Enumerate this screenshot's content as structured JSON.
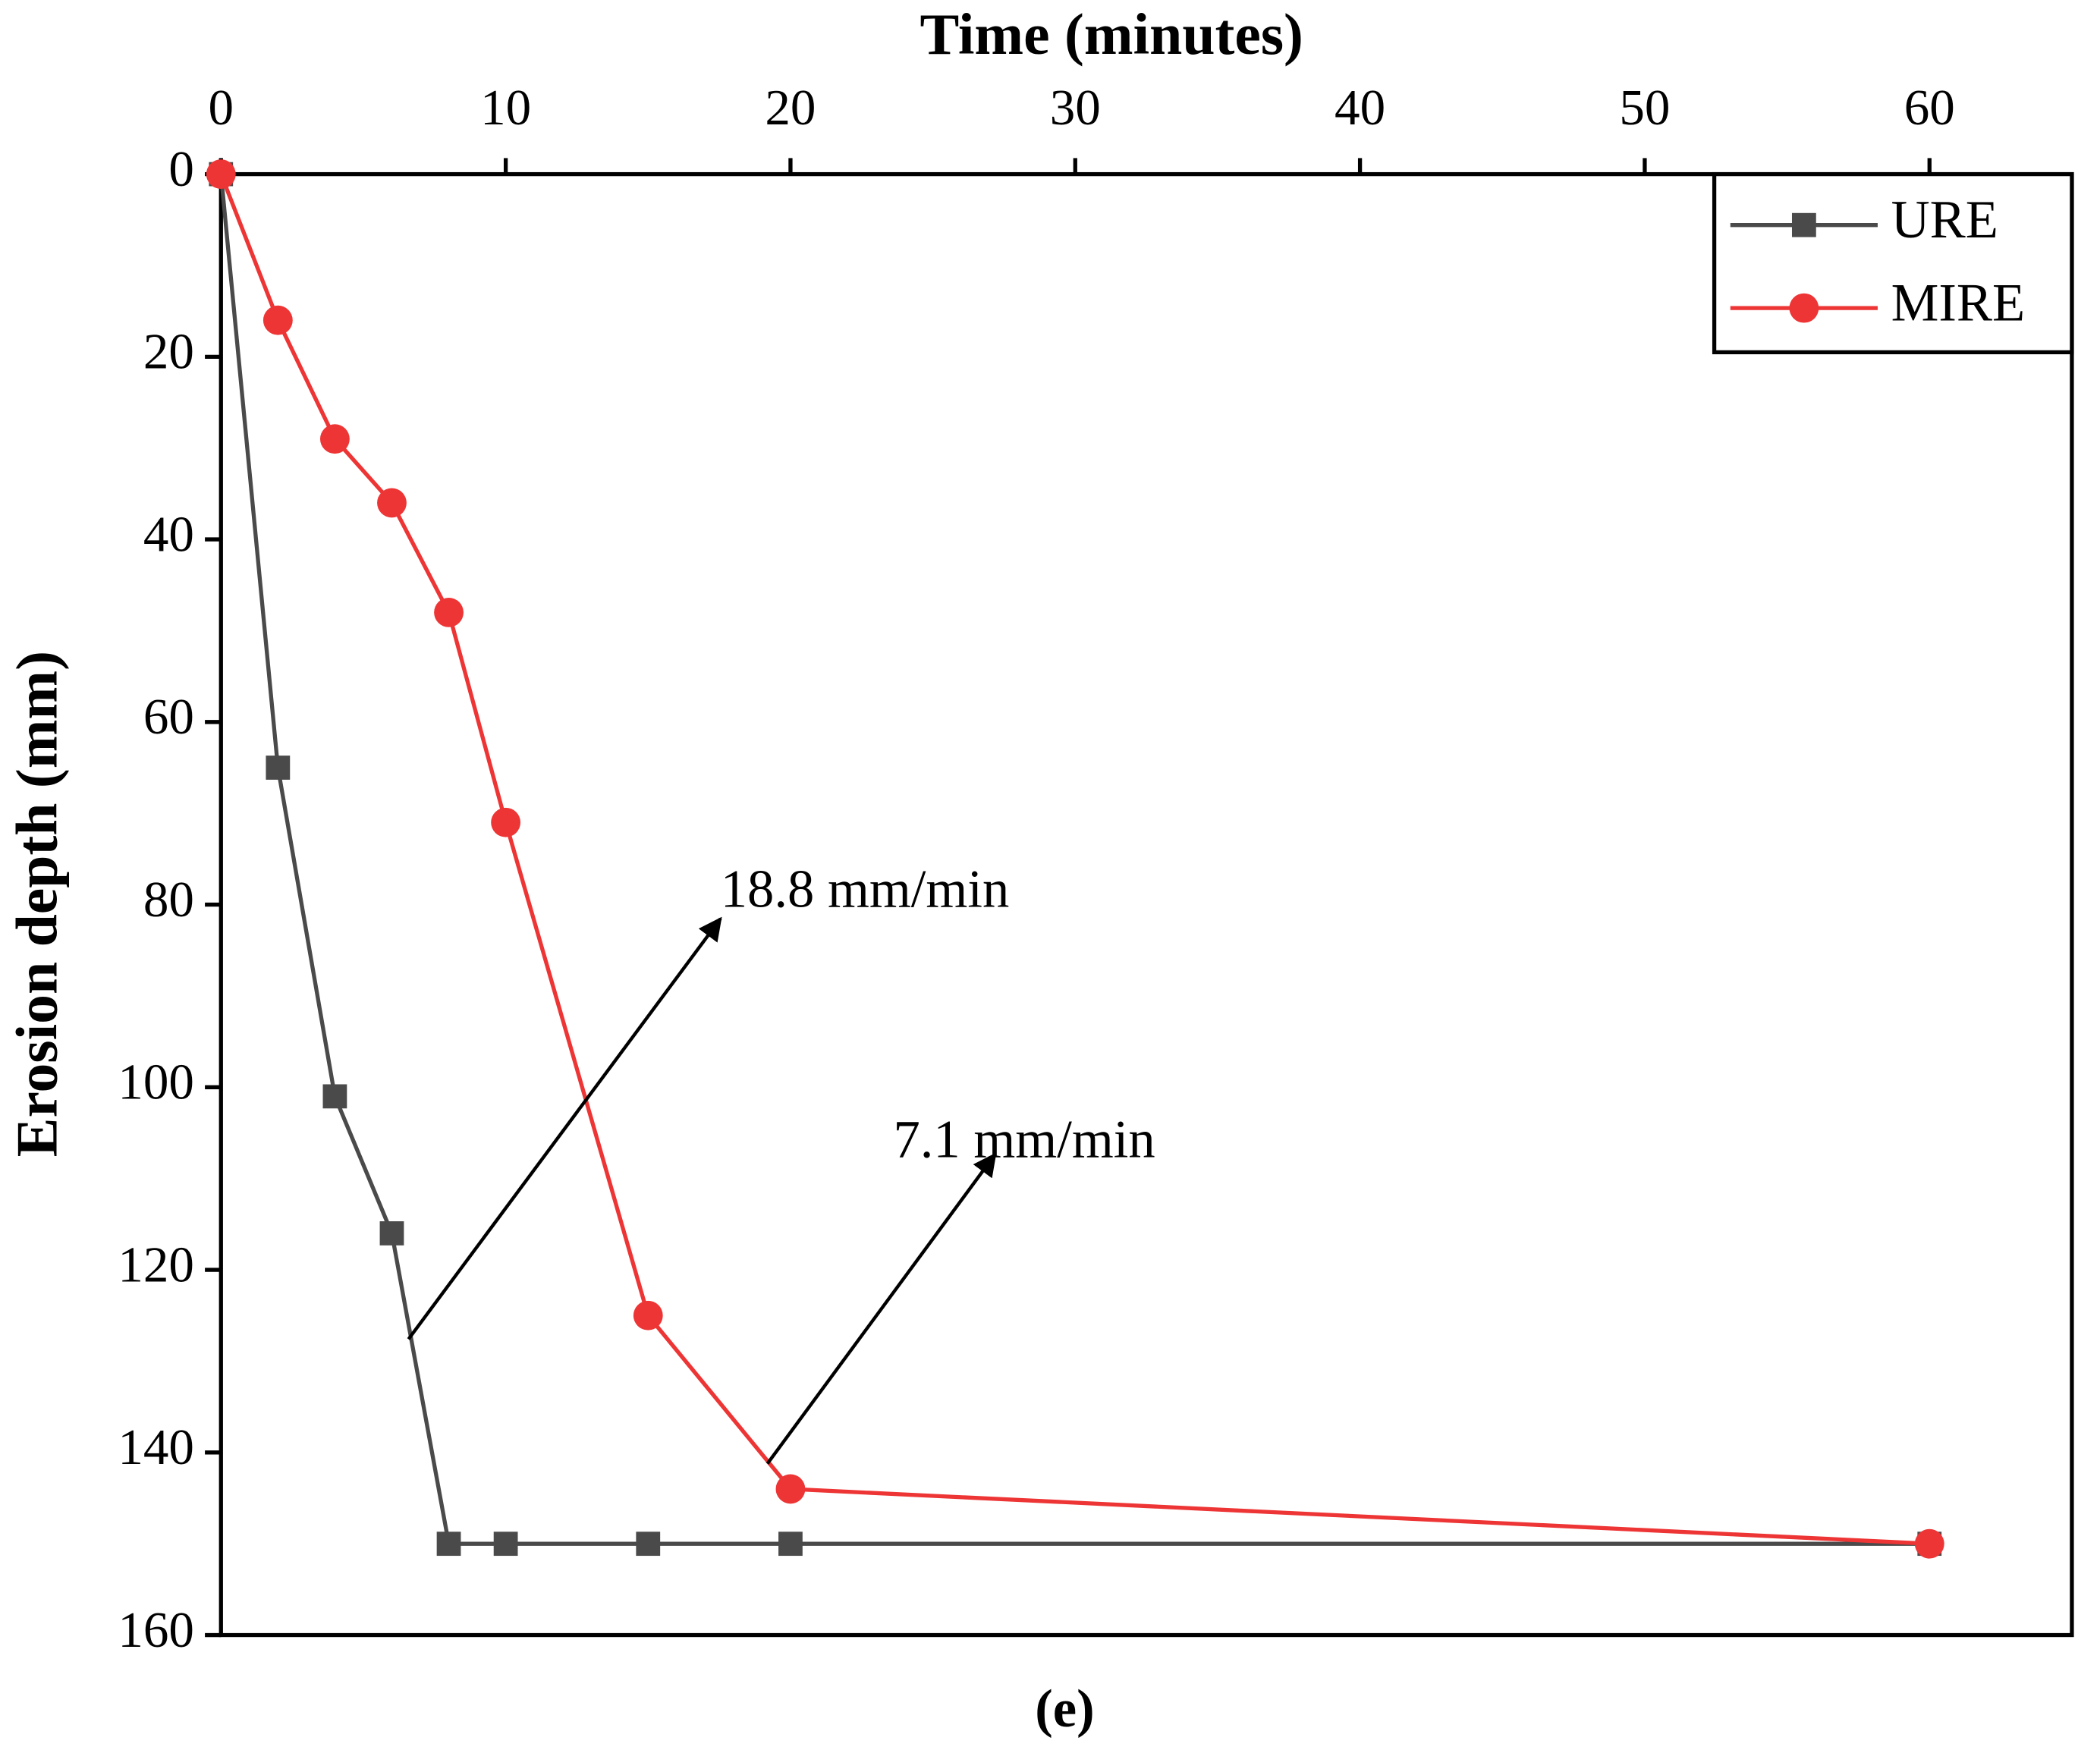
{
  "chart_data": {
    "type": "line",
    "title": "Time (minutes)",
    "y_label": "Erosion depth (mm)",
    "caption": "(e)",
    "x": [
      0,
      2,
      4,
      6,
      8,
      10,
      15,
      20,
      60
    ],
    "series": [
      {
        "name": "URE",
        "color": "#4a4a4a",
        "marker": "square",
        "values": [
          0,
          65,
          101,
          116,
          150,
          150,
          150,
          150,
          150
        ]
      },
      {
        "name": "MIRE",
        "color": "#ee3535",
        "marker": "circle",
        "values": [
          0,
          16,
          29,
          36,
          48,
          71,
          125,
          144,
          150
        ]
      }
    ],
    "xlim": [
      0,
      65
    ],
    "xticks": [
      0,
      10,
      20,
      30,
      40,
      50,
      60
    ],
    "x_axis_position": "top",
    "ylim": [
      0,
      160
    ],
    "yticks": [
      0,
      20,
      40,
      60,
      80,
      100,
      120,
      140,
      160
    ],
    "y_inverted": true,
    "legend": "upper right",
    "annotations": [
      {
        "text": "18.8 mm/min"
      },
      {
        "text": "7.1 mm/min"
      }
    ]
  }
}
